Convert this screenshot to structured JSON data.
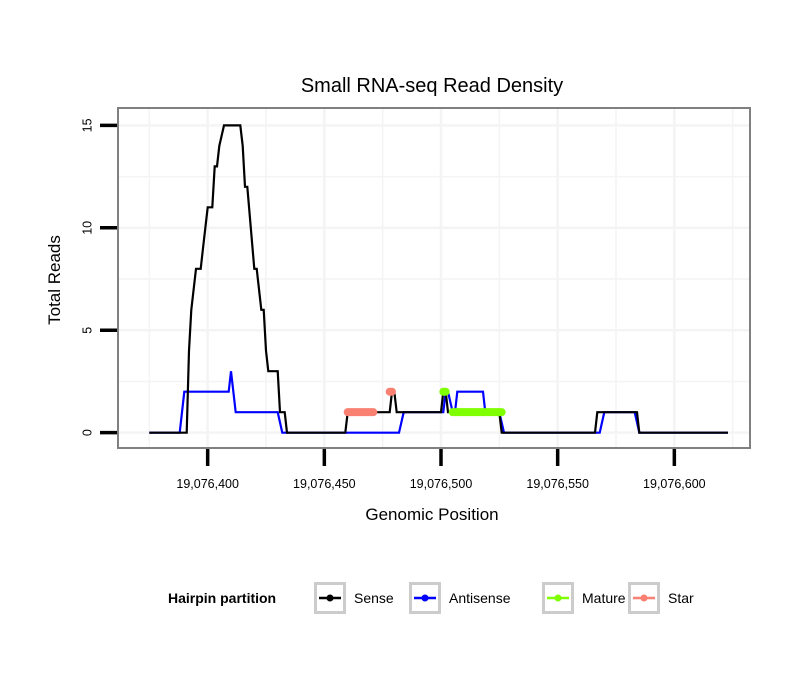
{
  "chart_data": {
    "type": "line",
    "title": "Small RNA-seq Read Density",
    "xlabel": "Genomic Position",
    "ylabel": "Total Reads",
    "xlim": [
      19076362,
      19076632
    ],
    "ylim": [
      -0.7,
      15.8
    ],
    "x_ticks": [
      19076400,
      19076450,
      19076500,
      19076550,
      19076600
    ],
    "x_tick_labels": [
      "19,076,400",
      "19,076,450",
      "19,076,500",
      "19,076,550",
      "19,076,600"
    ],
    "y_ticks": [
      0,
      5,
      10,
      15
    ],
    "y_tick_labels": [
      "0",
      "5",
      "10",
      "15"
    ],
    "grid": true,
    "legend": {
      "title": "Hairpin partition",
      "position": "bottom",
      "entries": [
        {
          "name": "Sense",
          "color": "#000000"
        },
        {
          "name": "Antisense",
          "color": "#0000ff"
        },
        {
          "name": "Mature",
          "color": "#7fff00"
        },
        {
          "name": "Star",
          "color": "#fa8072"
        }
      ]
    },
    "series": [
      {
        "name": "Antisense",
        "color": "#0000ff",
        "style": "line",
        "x": [
          19076375,
          19076388,
          19076390,
          19076409,
          19076410,
          19076412,
          19076430,
          19076432,
          19076482,
          19076484,
          19076501,
          19076502,
          19076503,
          19076505,
          19076506,
          19076507,
          19076518,
          19076519,
          19076525,
          19076527,
          19076568,
          19076570,
          19076583,
          19076585,
          19076623
        ],
        "values": [
          0,
          0,
          2,
          2,
          3,
          1,
          1,
          0,
          0,
          1,
          1,
          2,
          2,
          1,
          1,
          2,
          2,
          1,
          1,
          0,
          0,
          1,
          1,
          0,
          0
        ]
      },
      {
        "name": "Sense",
        "color": "#000000",
        "style": "line",
        "x": [
          19076375,
          19076391,
          19076392,
          19076393,
          19076395,
          19076397,
          19076398,
          19076400,
          19076402,
          19076403,
          19076404,
          19076405,
          19076407,
          19076409,
          19076414,
          19076415,
          19076416,
          19076417,
          19076420,
          19076421,
          19076423,
          19076424,
          19076425,
          19076426,
          19076430,
          19076431,
          19076433,
          19076434,
          19076435,
          19076459,
          19076460,
          19076478,
          19076479,
          19076480,
          19076481,
          19076500,
          19076501,
          19076502,
          19076503,
          19076504,
          19076525,
          19076526,
          19076566,
          19076567,
          19076584,
          19076585,
          19076623
        ],
        "values": [
          0,
          0,
          4,
          6,
          8,
          8,
          9,
          11,
          11,
          13,
          13,
          14,
          15,
          15,
          15,
          14,
          12,
          12,
          8,
          8,
          6,
          6,
          4,
          3,
          3,
          1,
          1,
          0,
          0,
          0,
          1,
          1,
          2,
          2,
          1,
          1,
          2,
          2,
          1,
          1,
          1,
          0,
          0,
          1,
          1,
          0,
          0
        ]
      },
      {
        "name": "Star",
        "color": "#fa8072",
        "style": "thick-segment",
        "x": [
          19076460,
          19076471,
          19076471,
          19076480
        ],
        "values": [
          1,
          1,
          null,
          null
        ],
        "segments": [
          {
            "x": [
              19076460,
              19076471
            ],
            "value": 1
          },
          {
            "x": [
              19076478,
              19076479
            ],
            "value": 2
          }
        ]
      },
      {
        "name": "Mature",
        "color": "#7fff00",
        "style": "thick-segment",
        "segments": [
          {
            "x": [
              19076501,
              19076502
            ],
            "value": 2
          },
          {
            "x": [
              19076505,
              19076526
            ],
            "value": 1
          }
        ]
      }
    ]
  }
}
